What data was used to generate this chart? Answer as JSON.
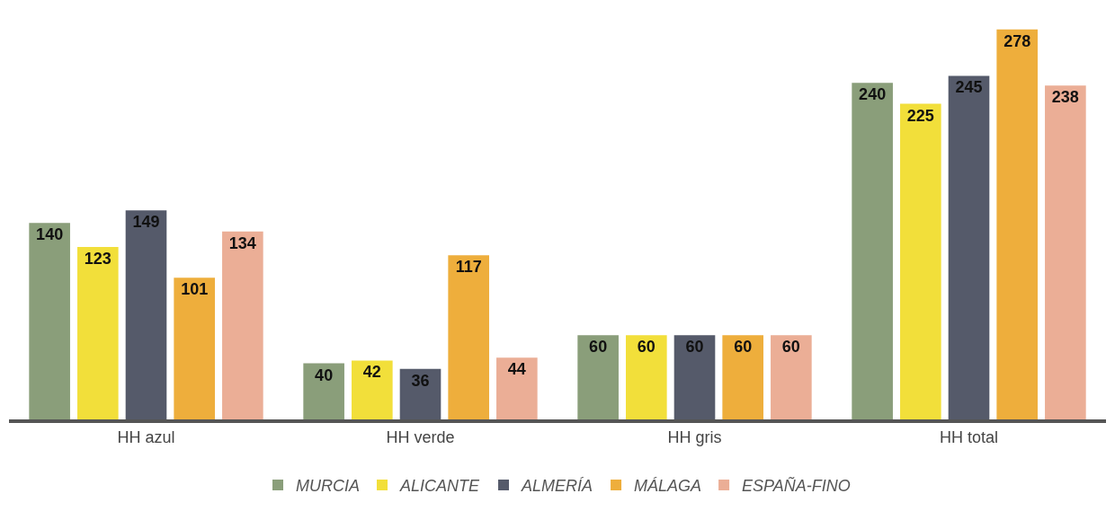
{
  "chart_data": {
    "type": "bar",
    "categories": [
      "HH azul",
      "HH verde",
      "HH gris",
      "HH total"
    ],
    "series": [
      {
        "name": "MURCIA",
        "color": "#8a9e7a",
        "values": [
          140,
          40,
          60,
          240
        ]
      },
      {
        "name": "ALICANTE",
        "color": "#f2df3a",
        "values": [
          123,
          42,
          60,
          225
        ]
      },
      {
        "name": "ALMERÍA",
        "color": "#555a6a",
        "values": [
          149,
          36,
          60,
          245
        ]
      },
      {
        "name": "MÁLAGA",
        "color": "#eeae3c",
        "values": [
          101,
          117,
          60,
          278
        ]
      },
      {
        "name": "ESPAÑA-FINO",
        "color": "#ebae96",
        "values": [
          134,
          44,
          60,
          238
        ]
      }
    ],
    "tick_labels": "x",
    "data_labels": true,
    "legend": "bottom",
    "grid": false
  }
}
